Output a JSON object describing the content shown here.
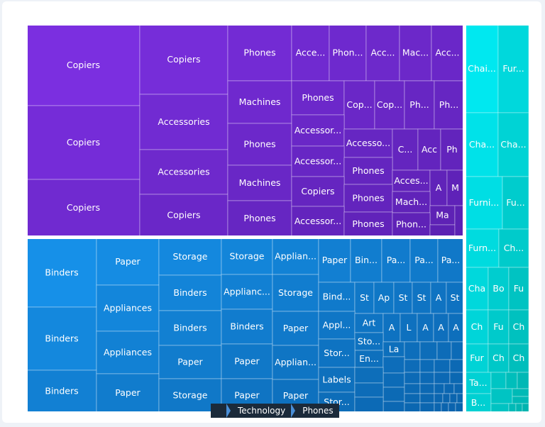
{
  "chart_data": {
    "type": "treemap",
    "breadcrumb": [
      "Technology",
      "Phones"
    ],
    "colors": {
      "technology": [
        "#7b2fe0",
        "#5a20b0"
      ],
      "office_supplies": [
        "#1690e8",
        "#0a62ab"
      ],
      "furniture": [
        "#00e8f0",
        "#00b0aa"
      ]
    }
  },
  "labels": {
    "tech": [
      "Copiers",
      "Copiers",
      "Copiers",
      "Copiers",
      "Accessories",
      "Accessories",
      "Copiers",
      "Phones",
      "Machines",
      "Phones",
      "Machines",
      "Phones",
      "Acce...",
      "Phon...",
      "Acc...",
      "Mac...",
      "Acc...",
      "Phones",
      "Cop...",
      "Cop...",
      "Ph...",
      "Ph...",
      "Accessor...",
      "Accesso...",
      "C...",
      "Acc",
      "Ph",
      "Accessor...",
      "Phones",
      "Acces...",
      "A",
      "M",
      "Copiers",
      "Phones",
      "Mach...",
      "Ma",
      "Accessor...",
      "Phones",
      "Phon..."
    ],
    "office": [
      "Binders",
      "Binders",
      "Binders",
      "Paper",
      "Appliances",
      "Appliances",
      "Paper",
      "Storage",
      "Binders",
      "Binders",
      "Paper",
      "Storage",
      "Storage",
      "Applianc...",
      "Binders",
      "Paper",
      "Paper",
      "Applian...",
      "Storage",
      "Paper",
      "Applian...",
      "Paper",
      "Paper",
      "Bin...",
      "Pa...",
      "Pa...",
      "Pa...",
      "Bind...",
      "St",
      "Ap",
      "St",
      "St",
      "A",
      "St",
      "Appl...",
      "Art",
      "A",
      "L",
      "A",
      "A",
      "A",
      "Sto...",
      "La",
      "En...",
      "Stor...",
      "Labels",
      "Stor..."
    ],
    "furn": [
      "Chai...",
      "Fur...",
      "Cha...",
      "Cha...",
      "Furni...",
      "Fu...",
      "Furn...",
      "Ch...",
      "Cha",
      "Bo",
      "Fu",
      "Ch",
      "Fu",
      "Ch",
      "Fur",
      "Ch",
      "Ch",
      "Ta...",
      "B..."
    ]
  }
}
